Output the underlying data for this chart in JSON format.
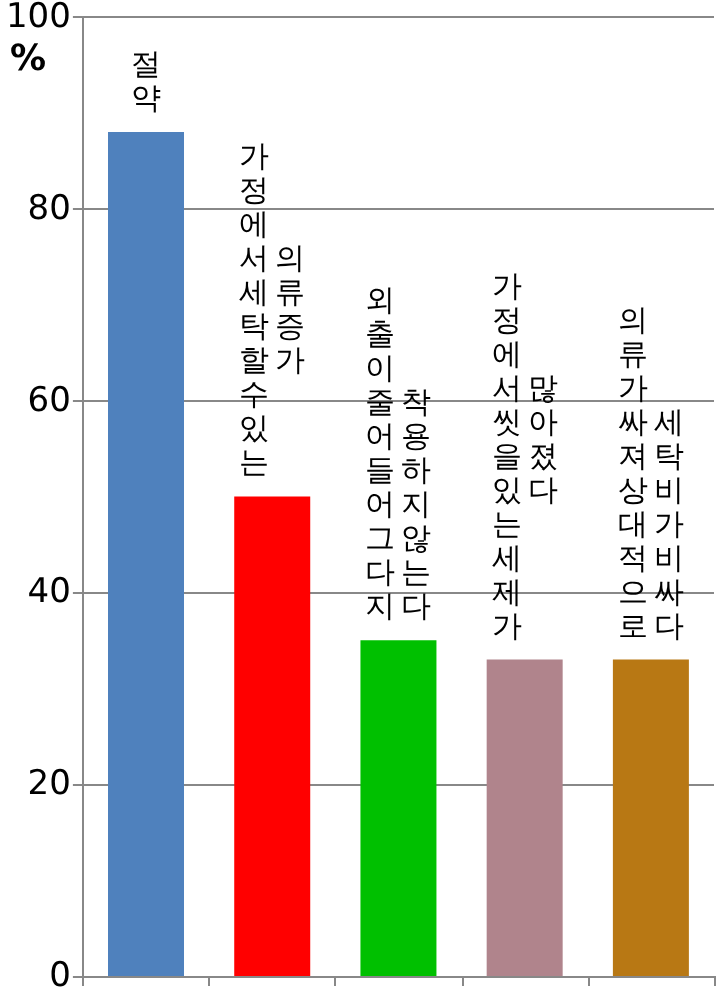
{
  "chart_data": {
    "type": "bar",
    "ylabel": "%",
    "categories": [
      "절약",
      "가정에서 세탁할 수 있는\n의류 증가",
      "외출이 줄어들어 그다지\n착용하지 않는다",
      "가정에서 씻을 있는 세제가\n많아졌다",
      "의류가 싸져 상대적으로\n세탁비가 비싸다"
    ],
    "values": [
      88,
      50,
      35,
      33,
      33
    ],
    "colors": [
      "#4f81bd",
      "#ff0000",
      "#00c000",
      "#b0848c",
      "#b87814"
    ],
    "ylim": [
      0,
      100
    ],
    "yticks": [
      0,
      20,
      40,
      60,
      80,
      100
    ],
    "grid": "y"
  }
}
